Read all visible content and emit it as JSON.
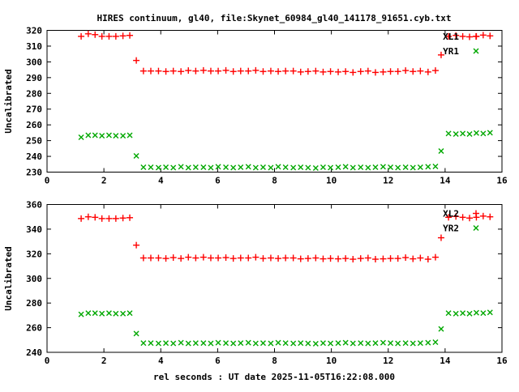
{
  "title": "HIRES continuum, gl40, file:Skynet_60984_gl40_141178_91651.cyb.txt",
  "xlabel": "rel seconds : UT date 2025-11-05T16:22:08.000",
  "colors": {
    "series_red": "#ff0000",
    "series_green": "#00a800",
    "text": "#000000",
    "frame": "#000000",
    "background": "#ffffff"
  },
  "chart_data": [
    {
      "type": "scatter",
      "panel": "top",
      "ylabel": "Uncalibrated",
      "xlim": [
        0,
        16
      ],
      "ylim": [
        230,
        320
      ],
      "xticks": [
        0,
        2,
        4,
        6,
        8,
        10,
        12,
        14,
        16
      ],
      "yticks": [
        230,
        240,
        250,
        260,
        270,
        280,
        290,
        300,
        310,
        320
      ],
      "grid": false,
      "legend_position": "top-right",
      "x": [
        1.2,
        1.45,
        1.69,
        1.93,
        2.18,
        2.42,
        2.67,
        2.91,
        3.14,
        3.39,
        3.65,
        3.92,
        4.18,
        4.44,
        4.71,
        4.97,
        5.23,
        5.5,
        5.76,
        6.02,
        6.29,
        6.55,
        6.81,
        7.08,
        7.34,
        7.6,
        7.87,
        8.13,
        8.39,
        8.66,
        8.92,
        9.18,
        9.45,
        9.71,
        9.97,
        10.24,
        10.5,
        10.76,
        11.03,
        11.29,
        11.55,
        11.82,
        12.08,
        12.34,
        12.61,
        12.87,
        13.13,
        13.4,
        13.66,
        13.86,
        14.12,
        14.38,
        14.62,
        14.86,
        15.1,
        15.34,
        15.58
      ],
      "series": [
        {
          "name": "XL1",
          "marker": "plus",
          "color": "#ff0000",
          "y": [
            316.2,
            317.8,
            317.3,
            316.2,
            316.2,
            316.2,
            316.5,
            316.8,
            300.9,
            294.2,
            294.2,
            294.2,
            293.9,
            294.2,
            293.9,
            294.5,
            294.2,
            294.6,
            294.2,
            294.2,
            294.6,
            293.9,
            294.2,
            294.2,
            294.6,
            293.9,
            294.2,
            293.9,
            294.2,
            294.2,
            293.6,
            293.9,
            294.2,
            293.6,
            293.9,
            293.6,
            293.9,
            293.3,
            293.9,
            294.2,
            293.3,
            293.6,
            293.9,
            293.9,
            294.5,
            293.9,
            294.2,
            293.6,
            294.5,
            304.4,
            316.2,
            316.8,
            316.2,
            315.9,
            316.2,
            317.0,
            316.5
          ]
        },
        {
          "name": "YR1",
          "marker": "cross",
          "color": "#00a800",
          "y": [
            252.1,
            253.4,
            253.4,
            253.1,
            253.4,
            253.1,
            253.1,
            253.4,
            240.3,
            233.1,
            233.1,
            232.8,
            233.1,
            232.8,
            233.4,
            232.8,
            233.1,
            233.1,
            232.8,
            233.4,
            233.1,
            232.8,
            233.1,
            233.4,
            232.8,
            233.1,
            232.8,
            233.4,
            233.1,
            232.8,
            233.1,
            232.8,
            232.6,
            233.1,
            232.8,
            233.1,
            233.4,
            232.8,
            233.1,
            232.8,
            233.1,
            233.4,
            233.1,
            232.8,
            233.1,
            232.8,
            233.1,
            233.4,
            233.6,
            243.4,
            254.5,
            254.2,
            254.5,
            254.2,
            254.8,
            254.5,
            255.0
          ]
        }
      ]
    },
    {
      "type": "scatter",
      "panel": "bottom",
      "ylabel": "Uncalibrated",
      "xlim": [
        0,
        16
      ],
      "ylim": [
        240,
        360
      ],
      "xticks": [
        0,
        2,
        4,
        6,
        8,
        10,
        12,
        14,
        16
      ],
      "yticks": [
        240,
        260,
        280,
        300,
        320,
        340,
        360
      ],
      "grid": false,
      "legend_position": "top-right",
      "x": [
        1.2,
        1.45,
        1.69,
        1.93,
        2.18,
        2.42,
        2.67,
        2.91,
        3.14,
        3.39,
        3.65,
        3.92,
        4.18,
        4.44,
        4.71,
        4.97,
        5.23,
        5.5,
        5.76,
        6.02,
        6.29,
        6.55,
        6.81,
        7.08,
        7.34,
        7.6,
        7.87,
        8.13,
        8.39,
        8.66,
        8.92,
        9.18,
        9.45,
        9.71,
        9.97,
        10.24,
        10.5,
        10.76,
        11.03,
        11.29,
        11.55,
        11.82,
        12.08,
        12.34,
        12.61,
        12.87,
        13.13,
        13.4,
        13.66,
        13.86,
        14.12,
        14.38,
        14.62,
        14.86,
        15.1,
        15.34,
        15.58
      ],
      "series": [
        {
          "name": "XL2",
          "marker": "plus",
          "color": "#ff0000",
          "y": [
            348.6,
            350.0,
            349.6,
            348.6,
            348.6,
            348.6,
            349.0,
            349.3,
            327.0,
            316.6,
            316.6,
            316.6,
            316.2,
            316.9,
            316.2,
            317.2,
            316.6,
            317.2,
            316.6,
            316.6,
            316.9,
            316.2,
            316.6,
            316.6,
            317.2,
            316.2,
            316.6,
            316.2,
            316.6,
            316.6,
            315.9,
            316.2,
            316.6,
            315.9,
            316.2,
            315.9,
            316.2,
            315.6,
            316.2,
            316.6,
            315.6,
            315.9,
            316.2,
            316.2,
            316.9,
            315.9,
            316.6,
            315.6,
            317.2,
            333.0,
            349.6,
            350.3,
            349.6,
            349.0,
            349.6,
            350.6,
            350.0
          ]
        },
        {
          "name": "YR2",
          "marker": "cross",
          "color": "#00a800",
          "y": [
            270.8,
            271.8,
            271.8,
            271.4,
            271.8,
            271.4,
            271.4,
            271.8,
            255.2,
            247.5,
            247.5,
            247.2,
            247.5,
            247.2,
            247.8,
            247.2,
            247.5,
            247.5,
            247.2,
            247.8,
            247.5,
            247.2,
            247.5,
            247.8,
            247.2,
            247.5,
            247.2,
            247.8,
            247.5,
            247.2,
            247.5,
            247.2,
            247.0,
            247.5,
            247.2,
            247.5,
            247.8,
            247.2,
            247.5,
            247.2,
            247.5,
            247.8,
            247.5,
            247.2,
            247.5,
            247.2,
            247.5,
            247.8,
            248.2,
            259.0,
            271.8,
            271.4,
            271.8,
            271.4,
            272.1,
            271.8,
            272.4
          ]
        }
      ]
    }
  ]
}
